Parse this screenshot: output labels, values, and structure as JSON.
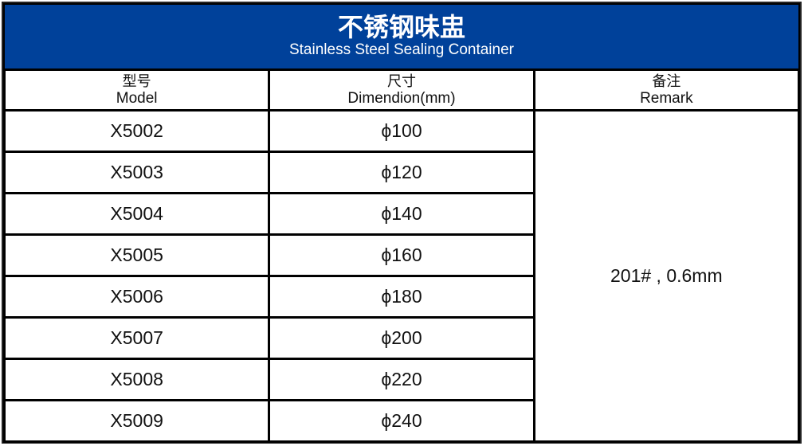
{
  "title": {
    "zh": "不锈钢味盅",
    "en": "Stainless Steel Sealing Container"
  },
  "header": [
    {
      "zh": "型号",
      "en": "Model"
    },
    {
      "zh": "尺寸",
      "en": "Dimendion(mm)"
    },
    {
      "zh": "备注",
      "en": "Remark"
    }
  ],
  "rows": [
    {
      "model": "X5002",
      "size": "ϕ100"
    },
    {
      "model": "X5003",
      "size": "ϕ120"
    },
    {
      "model": "X5004",
      "size": "ϕ140"
    },
    {
      "model": "X5005",
      "size": "ϕ160"
    },
    {
      "model": "X5006",
      "size": "ϕ180"
    },
    {
      "model": "X5007",
      "size": "ϕ200"
    },
    {
      "model": "X5008",
      "size": "ϕ220"
    },
    {
      "model": "X5009",
      "size": "ϕ240"
    }
  ],
  "remark": "201# , 0.6mm",
  "colors": {
    "header_bg": "#00419a",
    "border": "#000000"
  }
}
